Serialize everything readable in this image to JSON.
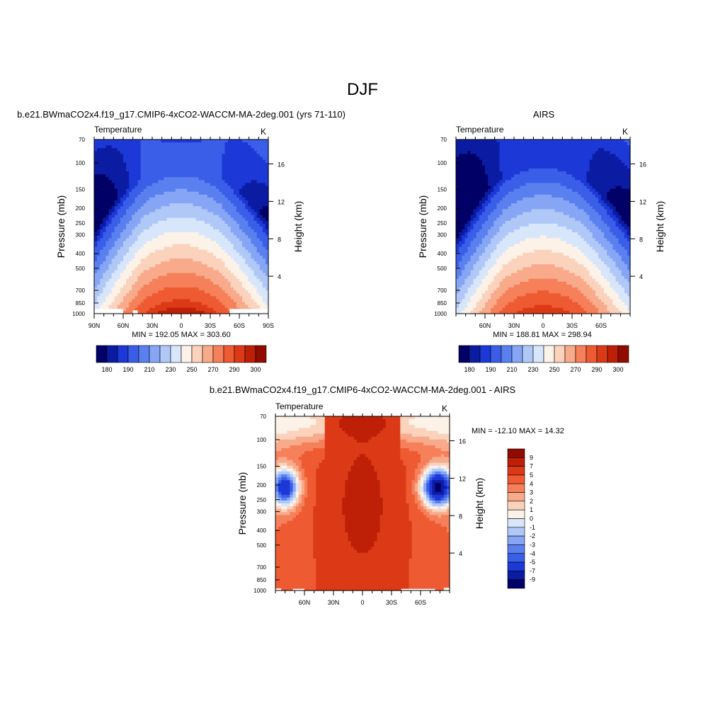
{
  "main_title": "DJF",
  "colors": {
    "temp_levels": [
      "#000066",
      "#0b1ca3",
      "#1c38d6",
      "#3a5ee8",
      "#5a80f0",
      "#86a6f5",
      "#b0c8f8",
      "#d8e6fb",
      "#fdf2e8",
      "#fbd3bd",
      "#f8aa8a",
      "#f5805a",
      "#ee5a32",
      "#dc3a16",
      "#bd2006",
      "#900c00"
    ],
    "diff_levels": [
      "#000066",
      "#0b1ca3",
      "#1c38d6",
      "#3a5ee8",
      "#5a80f0",
      "#86a6f5",
      "#b0c8f8",
      "#d8e6fb",
      "#fdf2e8",
      "#fbd3bd",
      "#f8aa8a",
      "#f5805a",
      "#ee5a32",
      "#dc3a16",
      "#bd2006",
      "#900c00"
    ]
  },
  "chart_data": [
    {
      "type": "heatmap",
      "title": "b.e21.BWmaCO2x4.f19_g17.CMIP6-4xCO2-WACCM-MA-2deg.001 (yrs 71-110)",
      "left_label": "Temperature",
      "right_label": "K",
      "ylabel": "Pressure (mb)",
      "ylabel_right": "Height (km)",
      "x_tick_labels": [
        "90N",
        "60N",
        "30N",
        "0",
        "30S",
        "60S",
        "90S"
      ],
      "x_tick_values": [
        90,
        60,
        30,
        0,
        -30,
        -60,
        -90
      ],
      "xlim": [
        90,
        -90
      ],
      "y_tick_labels": [
        "70",
        "100",
        "150",
        "200",
        "250",
        "300",
        "400",
        "500",
        "700",
        "850",
        "1000"
      ],
      "y_tick_values": [
        70,
        100,
        150,
        200,
        250,
        300,
        400,
        500,
        700,
        850,
        1000
      ],
      "ylim": [
        1000,
        70
      ],
      "y_scale": "log",
      "right_tick_labels": [
        "4",
        "8",
        "12",
        "16"
      ],
      "right_tick_values": [
        4,
        8,
        12,
        16
      ],
      "stats": "MIN = 192.05  MAX = 303.60",
      "min": 192.05,
      "max": 303.6,
      "colorbar_labels": [
        "180",
        "190",
        "210",
        "230",
        "250",
        "270",
        "290",
        "300"
      ]
    },
    {
      "type": "heatmap",
      "title": "AIRS",
      "left_label": "Temperature",
      "right_label": "K",
      "ylabel": "Pressure (mb)",
      "ylabel_right": "Height (km)",
      "x_tick_labels": [
        "60N",
        "30N",
        "0",
        "30S",
        "60S"
      ],
      "x_tick_values": [
        60,
        30,
        0,
        -30,
        -60
      ],
      "xlim": [
        90,
        -90
      ],
      "y_tick_labels": [
        "70",
        "100",
        "150",
        "200",
        "250",
        "300",
        "400",
        "500",
        "700",
        "850",
        "1000"
      ],
      "y_tick_values": [
        70,
        100,
        150,
        200,
        250,
        300,
        400,
        500,
        700,
        850,
        1000
      ],
      "ylim": [
        1000,
        70
      ],
      "y_scale": "log",
      "right_tick_labels": [
        "4",
        "8",
        "12",
        "16"
      ],
      "right_tick_values": [
        4,
        8,
        12,
        16
      ],
      "stats": "MIN = 188.81  MAX = 298.94",
      "min": 188.81,
      "max": 298.94,
      "colorbar_labels": [
        "180",
        "190",
        "210",
        "230",
        "250",
        "270",
        "290",
        "300"
      ]
    },
    {
      "type": "heatmap",
      "title": "b.e21.BWmaCO2x4.f19_g17.CMIP6-4xCO2-WACCM-MA-2deg.001 - AIRS",
      "left_label": "Temperature",
      "right_label": "K",
      "ylabel": "Pressure (mb)",
      "ylabel_right": "Height (km)",
      "x_tick_labels": [
        "60N",
        "30N",
        "0",
        "30S",
        "60S"
      ],
      "x_tick_values": [
        60,
        30,
        0,
        -30,
        -60
      ],
      "xlim": [
        90,
        -90
      ],
      "y_tick_labels": [
        "70",
        "100",
        "150",
        "200",
        "250",
        "300",
        "400",
        "500",
        "700",
        "850",
        "1000"
      ],
      "y_tick_values": [
        70,
        100,
        150,
        200,
        250,
        300,
        400,
        500,
        700,
        850,
        1000
      ],
      "ylim": [
        1000,
        70
      ],
      "y_scale": "log",
      "right_tick_labels": [
        "4",
        "8",
        "12",
        "16"
      ],
      "right_tick_values": [
        4,
        8,
        12,
        16
      ],
      "stats": "MIN = -12.10  MAX =  14.32",
      "min": -12.1,
      "max": 14.32,
      "colorbar_labels": [
        "9",
        "7",
        "5",
        "4",
        "3",
        "2",
        "1",
        "0",
        "-1",
        "-2",
        "-3",
        "-4",
        "-5",
        "-7",
        "-9"
      ]
    }
  ]
}
